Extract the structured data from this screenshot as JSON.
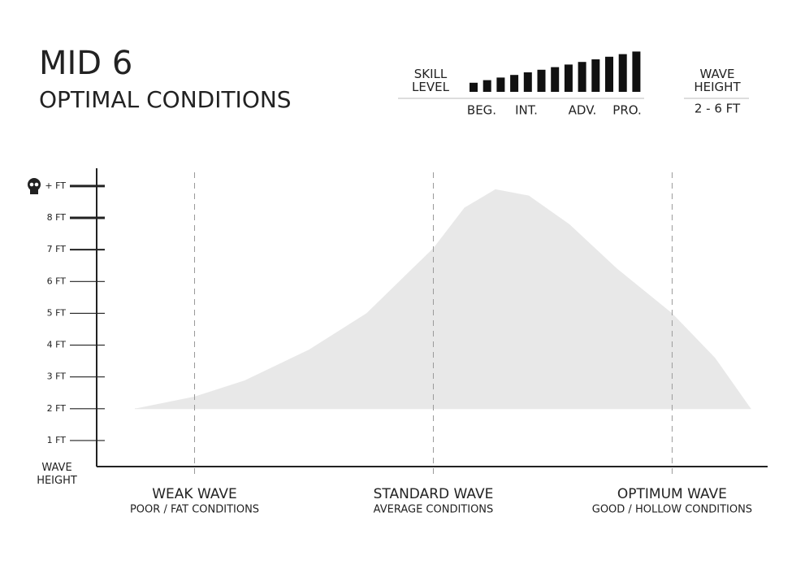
{
  "header": {
    "title": "MID 6",
    "subtitle": "OPTIMAL CONDITIONS"
  },
  "skill": {
    "label": "SKILL\nLEVEL",
    "bars": [
      1,
      2,
      3,
      4,
      5,
      6,
      7,
      8,
      9,
      10,
      11,
      12,
      13
    ],
    "levels": [
      "BEG.",
      "INT.",
      "ADV.",
      "PRO."
    ]
  },
  "wave_height": {
    "label": "WAVE\nHEIGHT",
    "value": "2 - 6 FT"
  },
  "chart_data": {
    "type": "area",
    "color": "#e8e8e8",
    "y_label": "WAVE\nHEIGHT",
    "ylim": [
      0.18,
      9.56
    ],
    "yticks": [
      {
        "value": 1,
        "label": "1 FT"
      },
      {
        "value": 2,
        "label": "2 FT"
      },
      {
        "value": 3,
        "label": "3 FT"
      },
      {
        "value": 4,
        "label": "4 FT"
      },
      {
        "value": 5,
        "label": "5 FT"
      },
      {
        "value": 6,
        "label": "6 FT"
      },
      {
        "value": 7,
        "label": "7 FT"
      },
      {
        "value": 8,
        "label": "8 FT"
      },
      {
        "value": 9,
        "label": "+ FT"
      }
    ],
    "xlim": [
      0.59,
      3.4
    ],
    "xticks": [
      {
        "value": 1,
        "label": "WEAK WAVE",
        "sublabel": "POOR / FAT CONDITIONS"
      },
      {
        "value": 2,
        "label": "STANDARD WAVE",
        "sublabel": "AVERAGE CONDITIONS"
      },
      {
        "value": 3,
        "label": "OPTIMUM WAVE",
        "sublabel": "GOOD / HOLLOW CONDITIONS"
      }
    ],
    "base": 2,
    "x": [
      0.75,
      1,
      1.21,
      1.48,
      1.72,
      2,
      2.13,
      2.26,
      2.4,
      2.57,
      2.77,
      3,
      3.18,
      3.33
    ],
    "values": [
      2,
      2.38,
      2.89,
      3.86,
      5.0,
      7.05,
      8.32,
      8.9,
      8.7,
      7.8,
      6.4,
      5.0,
      3.6,
      2.0
    ]
  }
}
